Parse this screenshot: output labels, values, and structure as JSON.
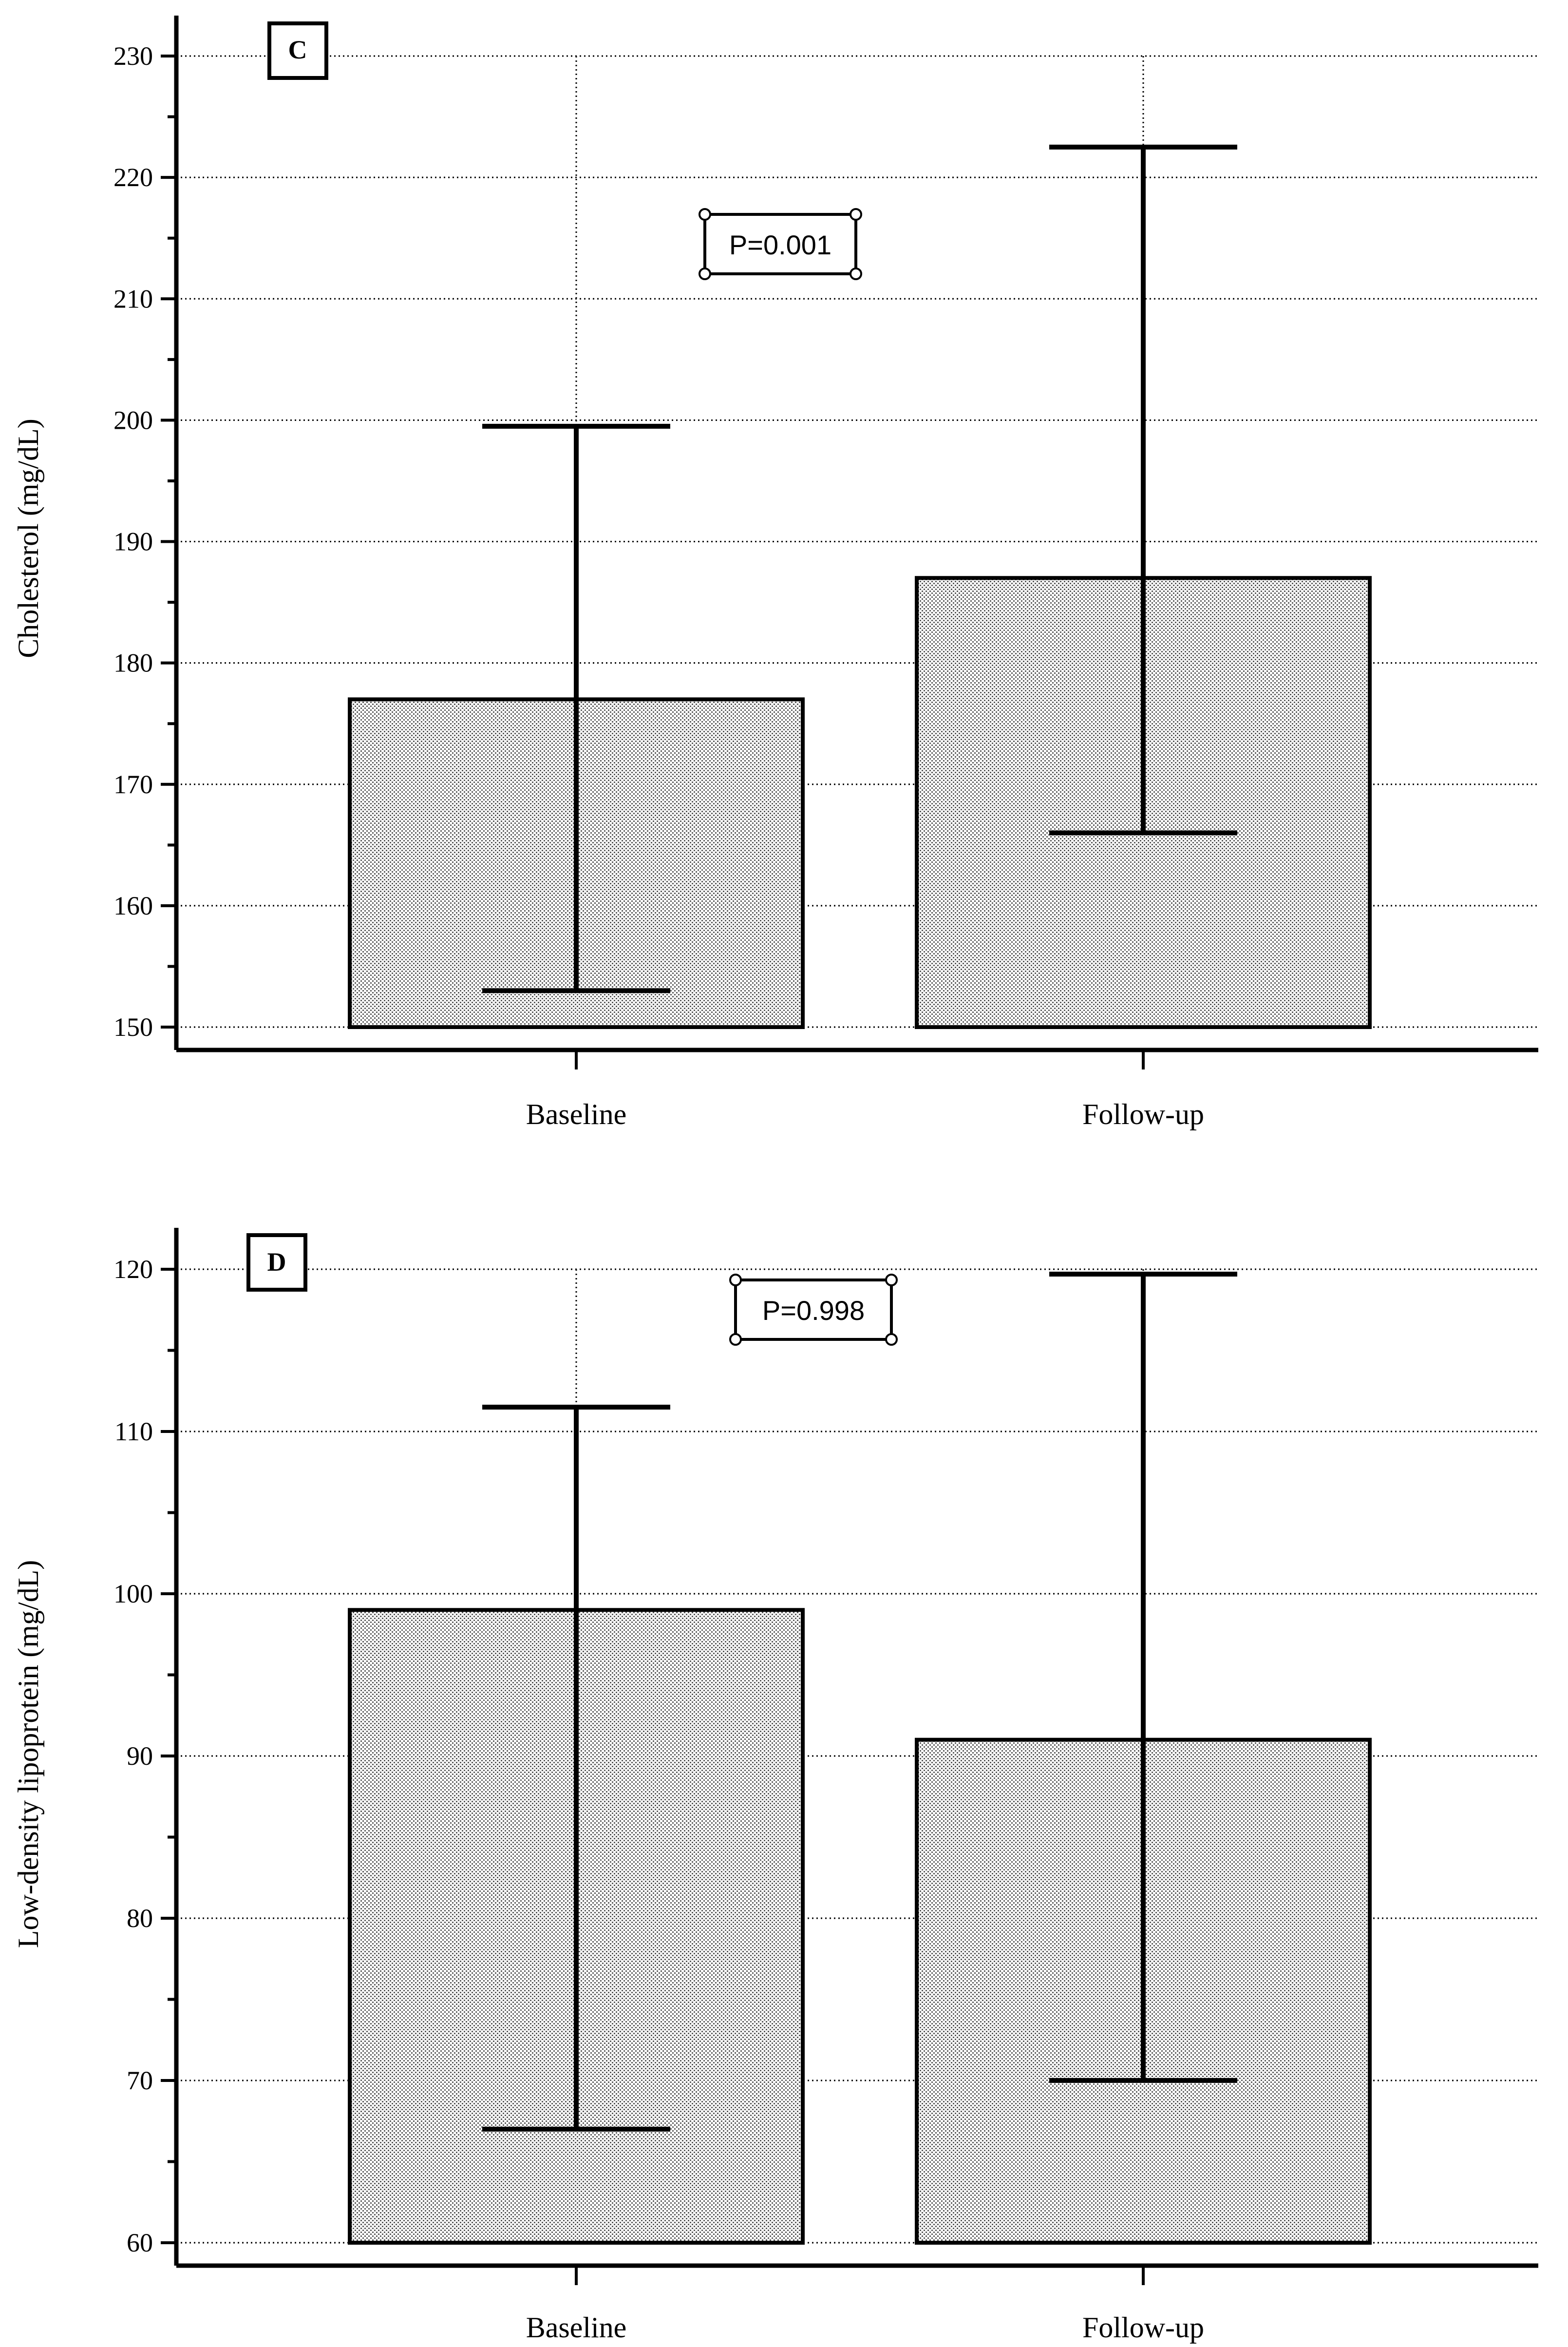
{
  "chart_data": [
    {
      "type": "bar",
      "panel_label": "C",
      "title": "",
      "xlabel": "",
      "ylabel": "Cholesterol (mg/dL)",
      "categories": [
        "Baseline",
        "Follow-up"
      ],
      "values": [
        177,
        187
      ],
      "error_low": [
        153,
        166
      ],
      "error_high": [
        199.5,
        222.5
      ],
      "ylim": [
        150,
        230
      ],
      "yticks": [
        150,
        160,
        170,
        180,
        190,
        200,
        210,
        220,
        230
      ],
      "grid": true,
      "annotation": "P=0.001",
      "fill_color": "#e2e2e2",
      "line_color": "#000000"
    },
    {
      "type": "bar",
      "panel_label": "D",
      "title": "",
      "xlabel": "",
      "ylabel": "Low-density lipoprotein (mg/dL)",
      "categories": [
        "Baseline",
        "Follow-up"
      ],
      "values": [
        99,
        91
      ],
      "error_low": [
        67,
        70
      ],
      "error_high": [
        111.5,
        119.7
      ],
      "ylim": [
        60,
        120
      ],
      "yticks": [
        60,
        70,
        80,
        90,
        100,
        110,
        120
      ],
      "grid": true,
      "annotation": "P=0.998",
      "fill_color": "#e2e2e2",
      "line_color": "#000000"
    }
  ]
}
